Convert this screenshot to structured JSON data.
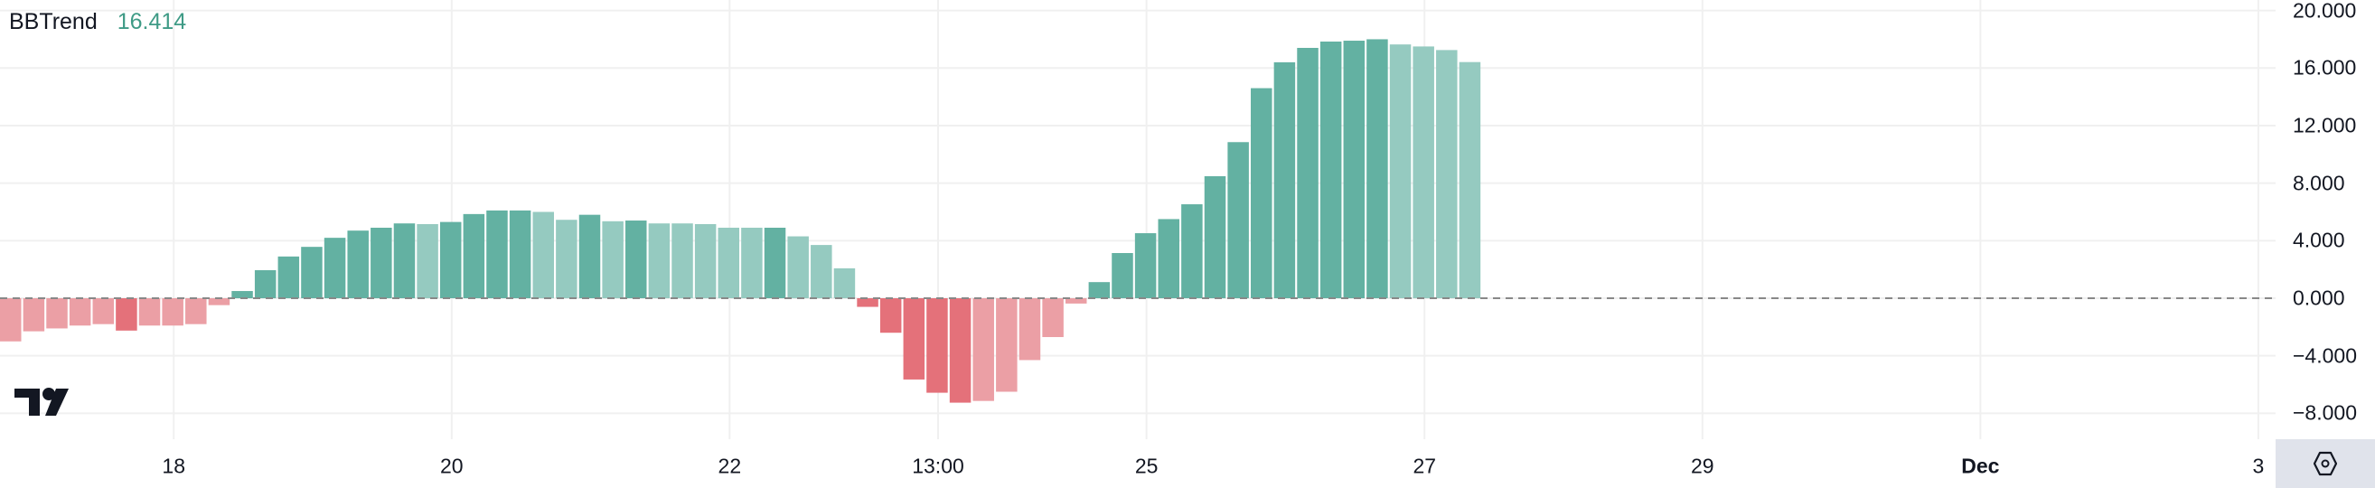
{
  "legend": {
    "name": "BBTrend",
    "value": "16.414",
    "value_color": "#3f9b86"
  },
  "colors": {
    "up_strong": "#63b1a2",
    "up_weak": "#95cac0",
    "down_strong": "#e4717a",
    "down_weak": "#eb9fa5",
    "zero_line": "#888888",
    "grid": "#f0f0f0"
  },
  "settings_icon": "hexagon-gear-icon",
  "logo": "TV",
  "chart_data": {
    "type": "bar",
    "title": "BBTrend",
    "ylim": [
      -9.5,
      20.7
    ],
    "grid": true,
    "y_ticks": [
      "20.000",
      "16.000",
      "12.000",
      "8.000",
      "4.000",
      "0.000",
      "−4.000",
      "−8.000"
    ],
    "y_tick_values": [
      20,
      16,
      12,
      8,
      4,
      0,
      -4,
      -8
    ],
    "x_ticks": [
      {
        "label": "18",
        "bar": 7.5,
        "bold": false
      },
      {
        "label": "20",
        "bar": 19.5,
        "bold": false
      },
      {
        "label": "22",
        "bar": 31.5,
        "bold": false
      },
      {
        "label": "13:00",
        "bar": 40.5,
        "bold": false
      },
      {
        "label": "25",
        "bar": 49.5,
        "bold": false
      },
      {
        "label": "27",
        "bar": 61.5,
        "bold": false
      },
      {
        "label": "29",
        "bar": 73.5,
        "bold": false
      },
      {
        "label": "Dec",
        "bar": 85.5,
        "bold": true
      },
      {
        "label": "3",
        "bar": 97.5,
        "bold": false
      }
    ],
    "values": [
      -3.0,
      -2.3,
      -2.1,
      -1.9,
      -1.8,
      -2.25,
      -1.9,
      -1.9,
      -1.8,
      -0.48,
      0.5,
      1.95,
      2.9,
      3.57,
      4.2,
      4.7,
      4.9,
      5.2,
      5.15,
      5.3,
      5.85,
      6.1,
      6.1,
      6.0,
      5.45,
      5.8,
      5.35,
      5.4,
      5.2,
      5.2,
      5.15,
      4.9,
      4.9,
      4.9,
      4.3,
      3.7,
      2.08,
      -0.6,
      -2.4,
      -5.65,
      -6.57,
      -7.26,
      -7.14,
      -6.5,
      -4.3,
      -2.7,
      -0.37,
      1.12,
      3.14,
      4.52,
      5.5,
      6.53,
      8.48,
      10.85,
      14.6,
      16.4,
      17.4,
      17.84,
      17.9,
      18.0,
      17.64,
      17.5,
      17.25,
      16.414
    ],
    "intensity": [
      "weak",
      "weak",
      "weak",
      "weak",
      "weak",
      "strong",
      "weak",
      "weak",
      "weak",
      "weak",
      "strong",
      "strong",
      "strong",
      "strong",
      "strong",
      "strong",
      "strong",
      "strong",
      "weak",
      "strong",
      "strong",
      "strong",
      "strong",
      "weak",
      "weak",
      "strong",
      "weak",
      "strong",
      "weak",
      "weak",
      "weak",
      "weak",
      "weak",
      "strong",
      "weak",
      "weak",
      "weak",
      "strong",
      "strong",
      "strong",
      "strong",
      "strong",
      "weak",
      "weak",
      "weak",
      "weak",
      "weak",
      "strong",
      "strong",
      "strong",
      "strong",
      "strong",
      "strong",
      "strong",
      "strong",
      "strong",
      "strong",
      "strong",
      "strong",
      "strong",
      "weak",
      "weak",
      "weak",
      "weak"
    ]
  }
}
